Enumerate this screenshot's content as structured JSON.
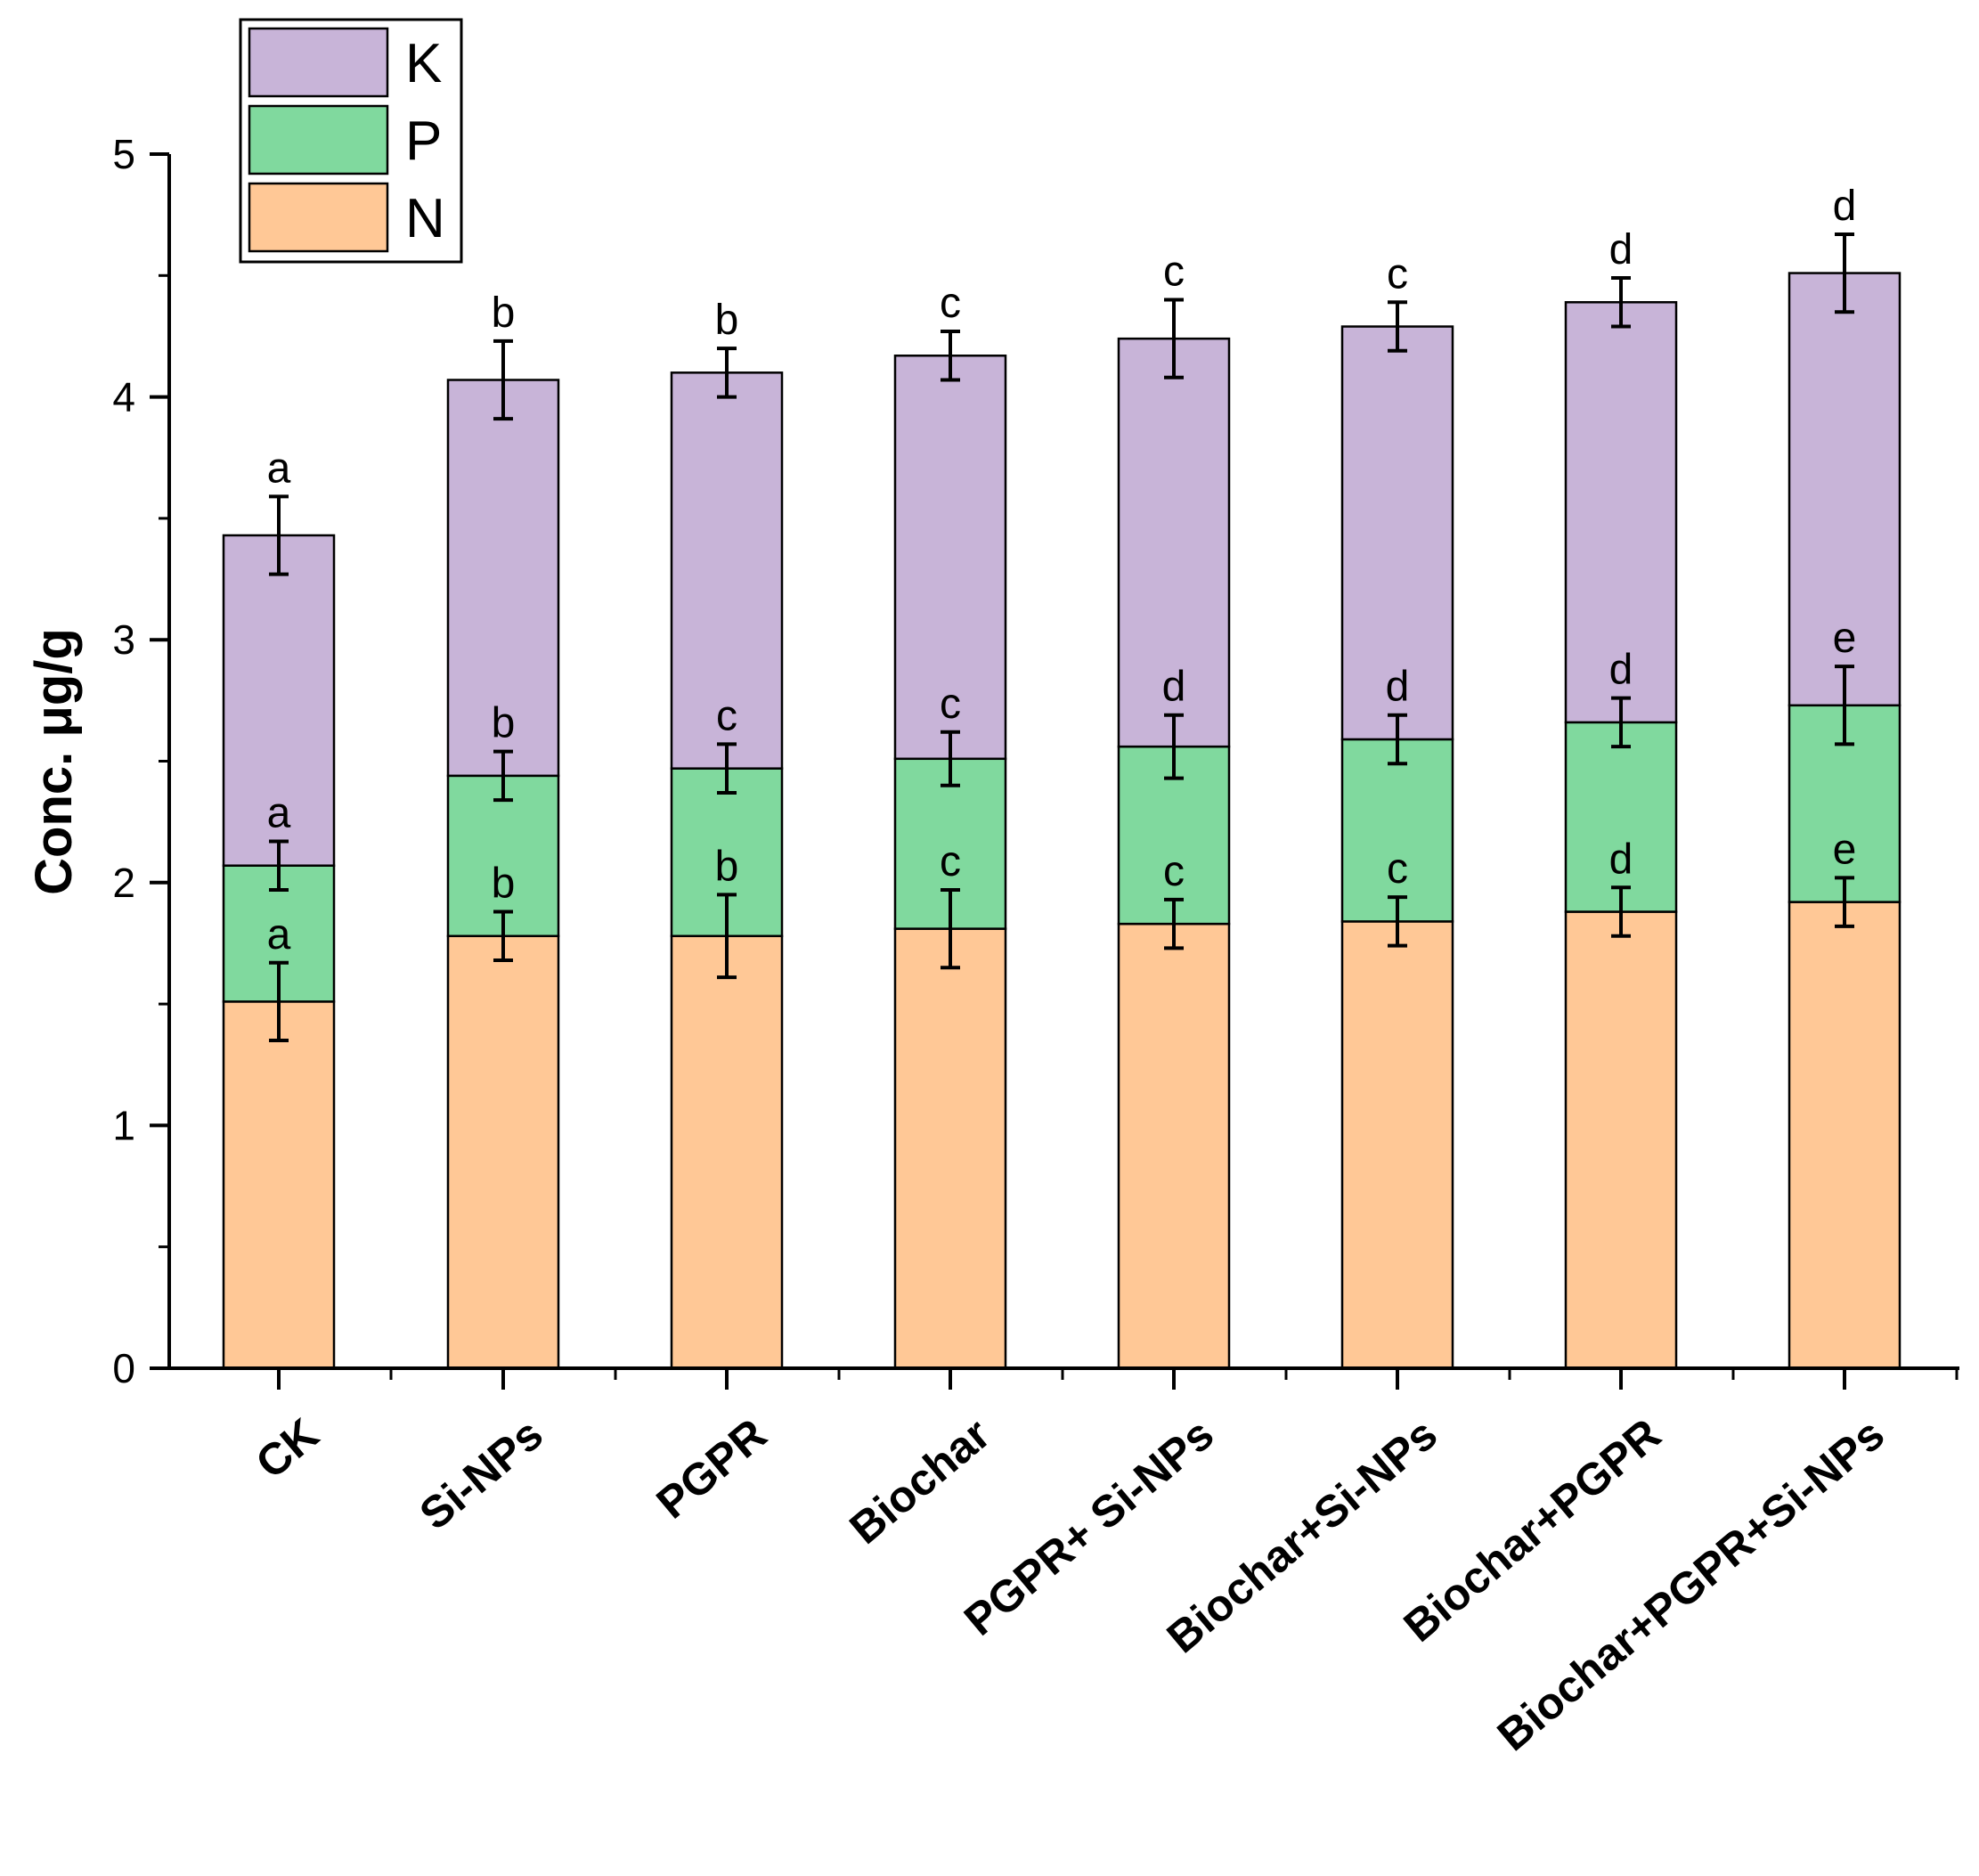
{
  "chart_data": {
    "type": "bar",
    "stacked": true,
    "title": "",
    "xlabel": "",
    "ylabel": "Conc. μg/g",
    "ylim": [
      0,
      5
    ],
    "yticks": [
      "0",
      "1",
      "2",
      "3",
      "4",
      "5"
    ],
    "grid": false,
    "legend_position": "top-left",
    "categories": [
      "CK",
      "Si-NPs",
      "PGPR",
      "Biochar",
      "PGPR+ Si-NPs",
      "Biochar+Si-NPs",
      "Biochar+PGPR",
      "Biochar+PGPR+Si-NPs"
    ],
    "series": [
      {
        "name": "N",
        "color": "#FFC896",
        "values": [
          1.51,
          1.78,
          1.78,
          1.81,
          1.83,
          1.84,
          1.88,
          1.92
        ],
        "cumulative_top": [
          1.51,
          1.78,
          1.78,
          1.81,
          1.83,
          1.84,
          1.88,
          1.92
        ],
        "error": [
          0.16,
          0.1,
          0.17,
          0.16,
          0.1,
          0.1,
          0.1,
          0.1
        ],
        "letters": [
          "a",
          "b",
          "b",
          "c",
          "c",
          "c",
          "d",
          "e"
        ]
      },
      {
        "name": "P",
        "color": "#80D99E",
        "values": [
          0.56,
          0.66,
          0.69,
          0.7,
          0.73,
          0.75,
          0.78,
          0.81
        ],
        "cumulative_top": [
          2.07,
          2.44,
          2.47,
          2.51,
          2.56,
          2.59,
          2.66,
          2.73
        ],
        "error": [
          0.1,
          0.1,
          0.1,
          0.11,
          0.13,
          0.1,
          0.1,
          0.16
        ],
        "letters": [
          "a",
          "b",
          "c",
          "c",
          "d",
          "d",
          "d",
          "e"
        ]
      },
      {
        "name": "K",
        "color": "#C8B4D8",
        "values": [
          1.36,
          1.63,
          1.63,
          1.66,
          1.68,
          1.7,
          1.73,
          1.78
        ],
        "cumulative_top": [
          3.43,
          4.07,
          4.1,
          4.17,
          4.24,
          4.29,
          4.39,
          4.51
        ],
        "error": [
          0.16,
          0.16,
          0.1,
          0.1,
          0.16,
          0.1,
          0.1,
          0.16
        ],
        "letters": [
          "a",
          "b",
          "b",
          "c",
          "c",
          "c",
          "d",
          "d"
        ]
      }
    ]
  }
}
